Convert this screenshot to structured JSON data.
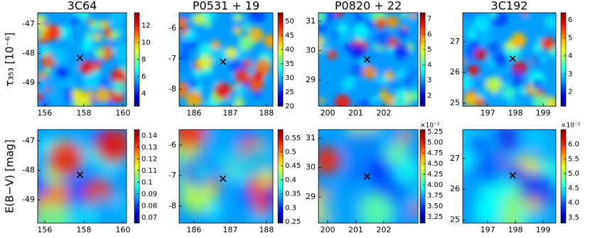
{
  "chart_data": [
    {
      "type": "heatmap",
      "colormap": "jet",
      "title": "3C64",
      "ylabel": "τ₃₅₃ [10⁻⁶]",
      "xlim": [
        155.64,
        160.18
      ],
      "ylim": [
        -49.79,
        -46.62
      ],
      "xticks": [
        156,
        158,
        160
      ],
      "yticks": [
        -47,
        -48,
        -49
      ],
      "clim": [
        2.5,
        13.5
      ],
      "cticks": [
        4,
        6,
        8,
        10,
        12
      ],
      "marker": {
        "x": 157.8,
        "y": -48.15
      }
    },
    {
      "type": "heatmap",
      "colormap": "jet",
      "title": "P0531 + 19",
      "xlim": [
        185.59,
        188.18
      ],
      "ylim": [
        -8.56,
        -5.49
      ],
      "xticks": [
        186,
        187,
        188
      ],
      "yticks": [
        -6,
        -7,
        -8
      ],
      "clim": [
        20,
        53
      ],
      "cticks": [
        20,
        25,
        30,
        35,
        40,
        45,
        50
      ],
      "marker": {
        "x": 186.8,
        "y": -7.1
      }
    },
    {
      "type": "heatmap",
      "colormap": "jet",
      "title": "P0820 + 22",
      "xlim": [
        199.67,
        203.22
      ],
      "ylim": [
        28.11,
        31.29
      ],
      "xticks": [
        200,
        201,
        202
      ],
      "yticks": [
        31,
        30,
        29
      ],
      "clim": [
        1.3,
        7.4
      ],
      "cticks": [
        2,
        3,
        4,
        5,
        6,
        7
      ],
      "marker": {
        "x": 201.4,
        "y": 29.7
      }
    },
    {
      "type": "heatmap",
      "colormap": "jet",
      "title": "3C192",
      "xlim": [
        196.1,
        199.46
      ],
      "ylim": [
        24.9,
        27.94
      ],
      "xticks": [
        197,
        198,
        199
      ],
      "yticks": [
        27,
        26,
        25
      ],
      "clim": [
        1.2,
        6.4
      ],
      "cticks": [
        2,
        3,
        4,
        5,
        6
      ],
      "marker": {
        "x": 197.9,
        "y": 26.45
      }
    },
    {
      "type": "heatmap",
      "colormap": "jet",
      "ylabel": "E(B−V) [mag]",
      "xlim": [
        155.64,
        160.18
      ],
      "ylim": [
        -49.79,
        -46.62
      ],
      "xticks": [
        156,
        158,
        160
      ],
      "yticks": [
        -47,
        -48,
        -49
      ],
      "clim": [
        0.065,
        0.145
      ],
      "cticks": [
        0.07,
        0.08,
        0.09,
        0.1,
        0.11,
        0.12,
        0.13,
        0.14
      ],
      "marker": {
        "x": 157.8,
        "y": -48.15
      }
    },
    {
      "type": "heatmap",
      "colormap": "jet",
      "xlim": [
        185.59,
        188.18
      ],
      "ylim": [
        -8.56,
        -5.49
      ],
      "xticks": [
        186,
        187,
        188
      ],
      "yticks": [
        -6,
        -7,
        -8
      ],
      "clim": [
        0.245,
        0.58
      ],
      "cticks": [
        0.25,
        0.3,
        0.35,
        0.4,
        0.45,
        0.5,
        0.55
      ],
      "marker": {
        "x": 186.8,
        "y": -7.1
      }
    },
    {
      "type": "heatmap",
      "colormap": "jet",
      "xlim": [
        199.67,
        203.22
      ],
      "ylim": [
        28.11,
        31.29
      ],
      "xticks": [
        200,
        201,
        202
      ],
      "yticks": [
        31,
        30,
        29
      ],
      "clim": [
        3.1,
        5.3
      ],
      "cscale": "×10⁻²",
      "cticks": [
        3.25,
        {
          "value": 3.5,
          "label": "3.50"
        },
        3.75,
        {
          "value": 4,
          "label": "4.00"
        },
        4.25,
        {
          "value": 4.5,
          "label": "4.50"
        },
        4.75,
        {
          "value": 5,
          "label": "5.00"
        },
        5.25
      ],
      "marker": {
        "x": 201.4,
        "y": 29.7
      }
    },
    {
      "type": "heatmap",
      "colormap": "jet",
      "xlim": [
        196.1,
        199.46
      ],
      "ylim": [
        24.9,
        27.94
      ],
      "xticks": [
        197,
        198,
        199
      ],
      "yticks": [
        27,
        26,
        25
      ],
      "clim": [
        3.3,
        6.5
      ],
      "cscale": "×10⁻²",
      "cticks": [
        3.5,
        {
          "value": 4,
          "label": "4.0"
        },
        4.5,
        {
          "value": 5,
          "label": "5.0"
        },
        5.5,
        {
          "value": 6,
          "label": "6.0"
        }
      ],
      "marker": {
        "x": 197.9,
        "y": 26.45
      }
    }
  ]
}
